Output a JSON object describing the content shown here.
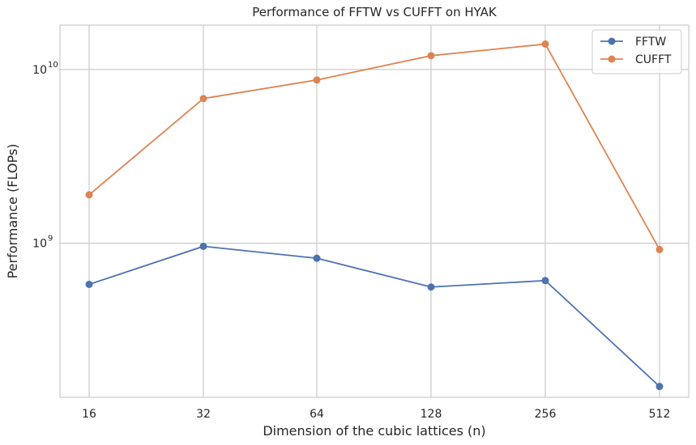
{
  "chart_data": {
    "type": "line",
    "title": "Performance of FFTW vs CUFFT on HYAK",
    "xlabel": "Dimension of the cubic lattices (n)",
    "ylabel": "Performance (FLOPs)",
    "categories": [
      "16",
      "32",
      "64",
      "128",
      "256",
      "512"
    ],
    "yscale": "log",
    "ylim": [
      130000000,
      18000000000
    ],
    "yticks": [
      {
        "value": 1000000000,
        "base": "10",
        "exp": "9"
      },
      {
        "value": 10000000000,
        "base": "10",
        "exp": "10"
      }
    ],
    "grid": true,
    "legend_position": "top-right",
    "series": [
      {
        "name": "FFTW",
        "color": "#4c72b0",
        "values": [
          580000000,
          960000000,
          820000000,
          560000000,
          610000000,
          150000000
        ]
      },
      {
        "name": "CUFFT",
        "color": "#dd8452",
        "values": [
          1900000000,
          6800000000,
          8700000000,
          12000000000,
          14000000000,
          920000000
        ]
      }
    ]
  }
}
